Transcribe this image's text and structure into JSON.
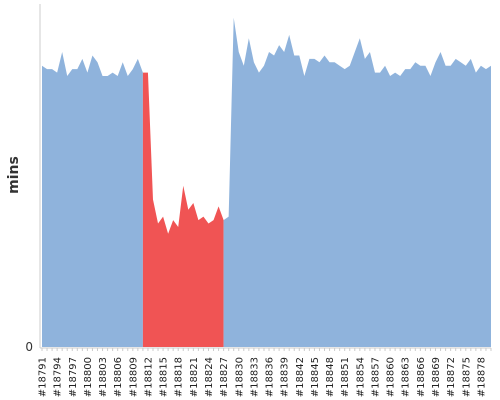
{
  "chart_data": {
    "type": "area",
    "ylabel": "mins",
    "xlabel": "",
    "ylim": [
      0,
      100
    ],
    "y_ticks": [
      {
        "value": 0,
        "label": "0"
      }
    ],
    "x_tick_labels": [
      "#18791",
      "#18794",
      "#18797",
      "#18800",
      "#18803",
      "#18806",
      "#18809",
      "#18812",
      "#18815",
      "#18818",
      "#18821",
      "#18824",
      "#18827",
      "#18830",
      "#18833",
      "#18836",
      "#18839",
      "#18842",
      "#18845",
      "#18848",
      "#18851",
      "#18854",
      "#18857",
      "#18860",
      "#18863",
      "#18866",
      "#18869",
      "#18872",
      "#18875",
      "#18878"
    ],
    "grid": false,
    "colors": {
      "normal": "#8fb3dc",
      "highlight": "#f05454",
      "axis": "#cccccc"
    },
    "highlight_range": [
      "#18812",
      "#18827"
    ],
    "x": [
      18791,
      18792,
      18793,
      18794,
      18795,
      18796,
      18797,
      18798,
      18799,
      18800,
      18801,
      18802,
      18803,
      18804,
      18805,
      18806,
      18807,
      18808,
      18809,
      18810,
      18811,
      18812,
      18813,
      18814,
      18815,
      18816,
      18817,
      18818,
      18819,
      18820,
      18821,
      18822,
      18823,
      18824,
      18825,
      18826,
      18827,
      18828,
      18829,
      18830,
      18831,
      18832,
      18833,
      18834,
      18835,
      18836,
      18837,
      18838,
      18839,
      18840,
      18841,
      18842,
      18843,
      18844,
      18845,
      18846,
      18847,
      18848,
      18849,
      18850,
      18851,
      18852,
      18853,
      18854,
      18855,
      18856,
      18857,
      18858,
      18859,
      18860,
      18861,
      18862,
      18863,
      18864,
      18865,
      18866,
      18867,
      18868,
      18869,
      18870,
      18871,
      18872,
      18873,
      18874,
      18875,
      18876,
      18877,
      18878,
      18879,
      18880
    ],
    "series": [
      {
        "values": [
          82,
          81,
          81,
          80,
          86,
          79,
          81,
          81,
          84,
          80,
          85,
          83,
          79,
          79,
          80,
          79,
          83,
          79,
          81,
          84,
          80,
          80,
          43,
          36,
          38,
          33,
          37,
          35,
          47,
          40,
          42,
          37,
          38,
          36,
          37,
          41,
          37,
          38,
          96,
          86,
          82,
          90,
          83,
          80,
          82,
          86,
          85,
          88,
          86,
          91,
          85,
          85,
          79,
          84,
          84,
          83,
          85,
          83,
          83,
          82,
          81,
          82,
          86,
          90,
          84,
          86,
          80,
          80,
          82,
          79,
          80,
          79,
          81,
          81,
          83,
          82,
          82,
          79,
          83,
          86,
          82,
          82,
          84,
          83,
          82,
          84,
          80,
          82,
          81,
          82
        ]
      }
    ]
  }
}
